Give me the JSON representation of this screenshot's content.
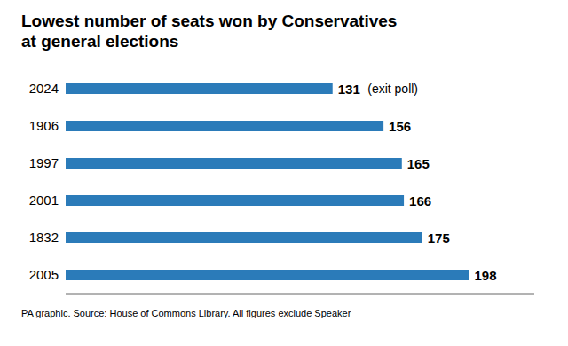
{
  "chart_data": {
    "type": "bar",
    "orientation": "horizontal",
    "title": "Lowest number of seats won by Conservatives\nat general elections",
    "categories": [
      "2024",
      "1906",
      "1997",
      "2001",
      "1832",
      "2005"
    ],
    "values": [
      131,
      156,
      165,
      166,
      175,
      198
    ],
    "color": "#2b7bb9",
    "xlim": [
      0,
      230
    ],
    "grid": false,
    "data_labels": true,
    "tick_labels": "y",
    "annotations": [
      {
        "category": "2024",
        "text": "(exit poll)"
      }
    ],
    "footnote": "PA graphic. Source: House of Commons Library. All figures exclude Speaker"
  }
}
